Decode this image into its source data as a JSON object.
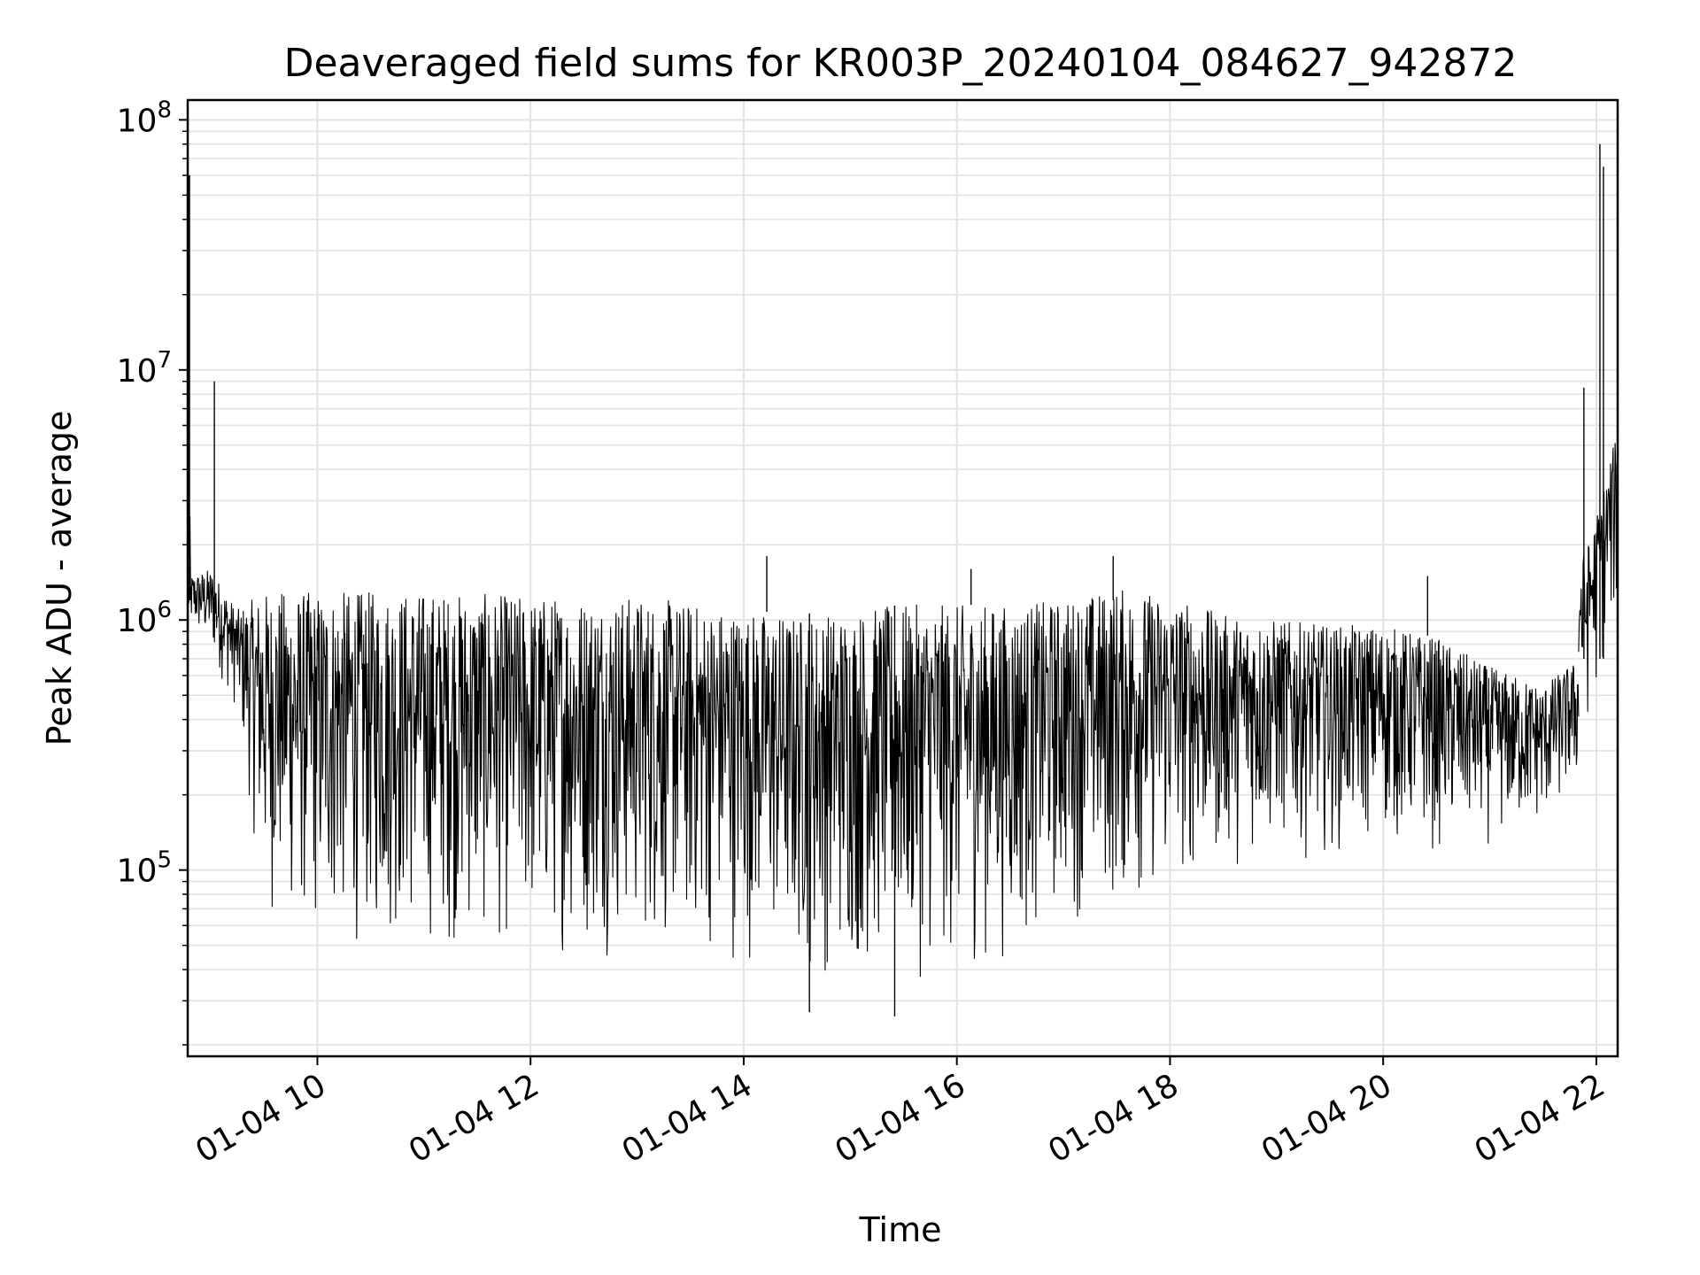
{
  "chart_data": {
    "type": "line",
    "title": "Deaveraged field sums for KR003P_20240104_084627_942872",
    "xlabel": "Time",
    "ylabel": "Peak ADU - average",
    "x_scale": "time",
    "y_scale": "log",
    "xlim": [
      "2024-01-04 08:47",
      "2024-01-04 22:12"
    ],
    "ylim": [
      18000,
      120000000
    ],
    "grid": "on (major and minor)",
    "x_ticks": [
      {
        "value": "2024-01-04 10:00",
        "label": "01-04 10"
      },
      {
        "value": "2024-01-04 12:00",
        "label": "01-04 12"
      },
      {
        "value": "2024-01-04 14:00",
        "label": "01-04 14"
      },
      {
        "value": "2024-01-04 16:00",
        "label": "01-04 16"
      },
      {
        "value": "2024-01-04 18:00",
        "label": "01-04 18"
      },
      {
        "value": "2024-01-04 20:00",
        "label": "01-04 20"
      },
      {
        "value": "2024-01-04 22:00",
        "label": "01-04 22"
      }
    ],
    "y_ticks": [
      {
        "value": 100000,
        "base": "10",
        "exp": "5"
      },
      {
        "value": 1000000,
        "base": "10",
        "exp": "6"
      },
      {
        "value": 10000000,
        "base": "10",
        "exp": "7"
      },
      {
        "value": 100000000,
        "base": "10",
        "exp": "8"
      }
    ],
    "series": [
      {
        "color": "#000000",
        "envelope": {
          "x": [
            "2024-01-04 08:47",
            "2024-01-04 09:00",
            "2024-01-04 09:15",
            "2024-01-04 09:30",
            "2024-01-04 10:00",
            "2024-01-04 11:00",
            "2024-01-04 12:00",
            "2024-01-04 13:00",
            "2024-01-04 14:00",
            "2024-01-04 14:30",
            "2024-01-04 15:00",
            "2024-01-04 15:30",
            "2024-01-04 16:00",
            "2024-01-04 16:30",
            "2024-01-04 17:00",
            "2024-01-04 17:30",
            "2024-01-04 18:00",
            "2024-01-04 18:30",
            "2024-01-04 19:00",
            "2024-01-04 19:30",
            "2024-01-04 20:00",
            "2024-01-04 20:30",
            "2024-01-04 21:00",
            "2024-01-04 21:30",
            "2024-01-04 21:50"
          ],
          "upper": [
            1500000,
            1600000,
            1100000,
            1300000,
            1300000,
            1300000,
            1250000,
            1250000,
            1100000,
            1050000,
            1100000,
            1150000,
            1150000,
            1150000,
            1200000,
            1350000,
            1250000,
            1050000,
            1000000,
            950000,
            950000,
            850000,
            650000,
            550000,
            700000
          ],
          "lower": [
            900000,
            700000,
            400000,
            60000,
            45000,
            45000,
            43000,
            43000,
            40000,
            34000,
            34000,
            33000,
            36000,
            40000,
            60000,
            60000,
            75000,
            95000,
            110000,
            110000,
            120000,
            110000,
            120000,
            140000,
            200000
          ]
        },
        "spikes": [
          {
            "x": "2024-01-04 08:48",
            "y": 60000000
          },
          {
            "x": "2024-01-04 09:02",
            "y": 9000000
          },
          {
            "x": "2024-01-04 14:13",
            "y": 1800000
          },
          {
            "x": "2024-01-04 16:08",
            "y": 1600000
          },
          {
            "x": "2024-01-04 17:28",
            "y": 1800000
          },
          {
            "x": "2024-01-04 20:25",
            "y": 1500000
          },
          {
            "x": "2024-01-04 21:53",
            "y": 8500000
          },
          {
            "x": "2024-01-04 22:02",
            "y": 80000000
          },
          {
            "x": "2024-01-04 22:04",
            "y": 65000000
          },
          {
            "x": "2024-01-04 15:25",
            "y": 26000
          },
          {
            "x": "2024-01-04 14:37",
            "y": 27000
          }
        ]
      }
    ]
  }
}
